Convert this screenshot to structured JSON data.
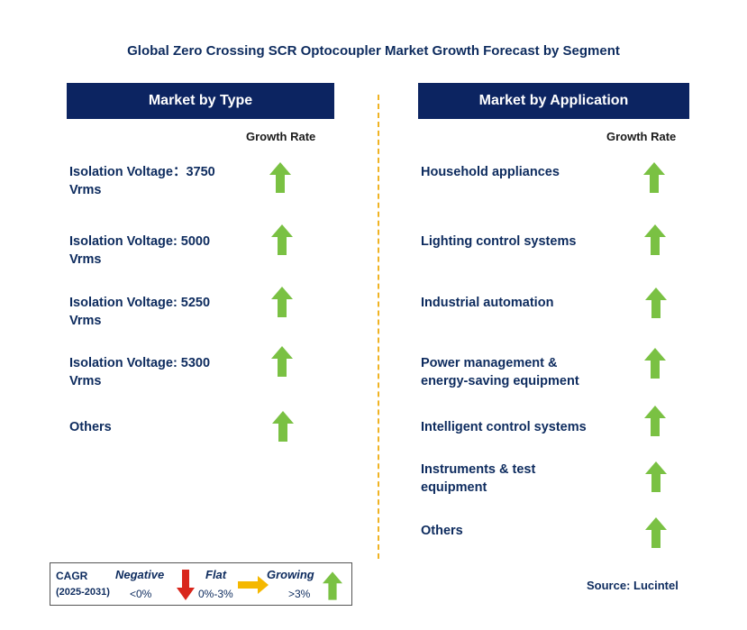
{
  "title": "Global Zero Crossing SCR Optocoupler Market Growth Forecast by Segment",
  "left": {
    "header": "Market by Type",
    "growth_label": "Growth Rate",
    "items": [
      {
        "label": "Isolation Voltage：3750\nVrms",
        "trend": "growing"
      },
      {
        "label": "Isolation Voltage: 5000\nVrms",
        "trend": "growing"
      },
      {
        "label": "Isolation Voltage: 5250\nVrms",
        "trend": "growing"
      },
      {
        "label": "Isolation Voltage: 5300\nVrms",
        "trend": "growing"
      },
      {
        "label": "Others",
        "trend": "growing"
      }
    ]
  },
  "right": {
    "header": "Market by Application",
    "growth_label": "Growth Rate",
    "items": [
      {
        "label": "Household appliances",
        "trend": "growing"
      },
      {
        "label": "Lighting control systems",
        "trend": "growing"
      },
      {
        "label": "Industrial automation",
        "trend": "growing"
      },
      {
        "label": "Power management &\nenergy-saving equipment",
        "trend": "growing"
      },
      {
        "label": "Intelligent control systems",
        "trend": "growing"
      },
      {
        "label": "Instruments & test\nequipment",
        "trend": "growing"
      },
      {
        "label": "Others",
        "trend": "growing"
      }
    ]
  },
  "legend": {
    "cagr": "CAGR",
    "period": "(2025-2031)",
    "negative_label": "Negative",
    "negative_range": "<0%",
    "flat_label": "Flat",
    "flat_range": "0%-3%",
    "growing_label": "Growing",
    "growing_range": ">3%"
  },
  "source": "Source: Lucintel",
  "colors": {
    "header_bg": "#0c2461",
    "text": "#0d2b5e",
    "growing": "#7ac143",
    "negative": "#d9261c",
    "flat": "#f5b800",
    "divider": "#f0b323"
  }
}
